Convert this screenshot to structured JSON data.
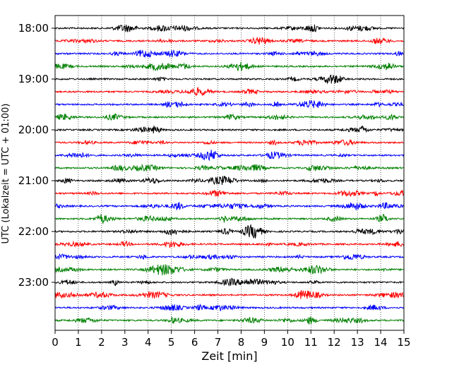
{
  "chart_data": {
    "type": "line",
    "title": "",
    "xlabel": "Zeit  [min]",
    "ylabel": "UTC (Lokalzeit = UTC + 01:00)",
    "xlim": [
      0,
      15
    ],
    "x_ticks": [
      "0",
      "1",
      "2",
      "3",
      "4",
      "5",
      "6",
      "7",
      "8",
      "9",
      "10",
      "11",
      "12",
      "13",
      "14",
      "15"
    ],
    "y_ticks": [
      "18:00",
      "19:00",
      "20:00",
      "21:00",
      "22:00",
      "23:00"
    ],
    "grid": "vertical dotted lines at each minute",
    "trace_interval_minutes": 15,
    "color_cycle": [
      "#000000",
      "#ff0000",
      "#0000ff",
      "#008000"
    ],
    "traces": [
      {
        "start": "18:00",
        "color": "#000000"
      },
      {
        "start": "18:15",
        "color": "#ff0000"
      },
      {
        "start": "18:30",
        "color": "#0000ff"
      },
      {
        "start": "18:45",
        "color": "#008000"
      },
      {
        "start": "19:00",
        "color": "#000000"
      },
      {
        "start": "19:15",
        "color": "#ff0000"
      },
      {
        "start": "19:30",
        "color": "#0000ff"
      },
      {
        "start": "19:45",
        "color": "#008000"
      },
      {
        "start": "20:00",
        "color": "#000000"
      },
      {
        "start": "20:15",
        "color": "#ff0000"
      },
      {
        "start": "20:30",
        "color": "#0000ff"
      },
      {
        "start": "20:45",
        "color": "#008000"
      },
      {
        "start": "21:00",
        "color": "#000000"
      },
      {
        "start": "21:15",
        "color": "#ff0000"
      },
      {
        "start": "21:30",
        "color": "#0000ff"
      },
      {
        "start": "21:45",
        "color": "#008000"
      },
      {
        "start": "22:00",
        "color": "#000000"
      },
      {
        "start": "22:15",
        "color": "#ff0000"
      },
      {
        "start": "22:30",
        "color": "#0000ff"
      },
      {
        "start": "22:45",
        "color": "#008000"
      },
      {
        "start": "23:00",
        "color": "#000000"
      },
      {
        "start": "23:15",
        "color": "#ff0000"
      },
      {
        "start": "23:30",
        "color": "#0000ff"
      },
      {
        "start": "23:45",
        "color": "#008000"
      }
    ]
  }
}
